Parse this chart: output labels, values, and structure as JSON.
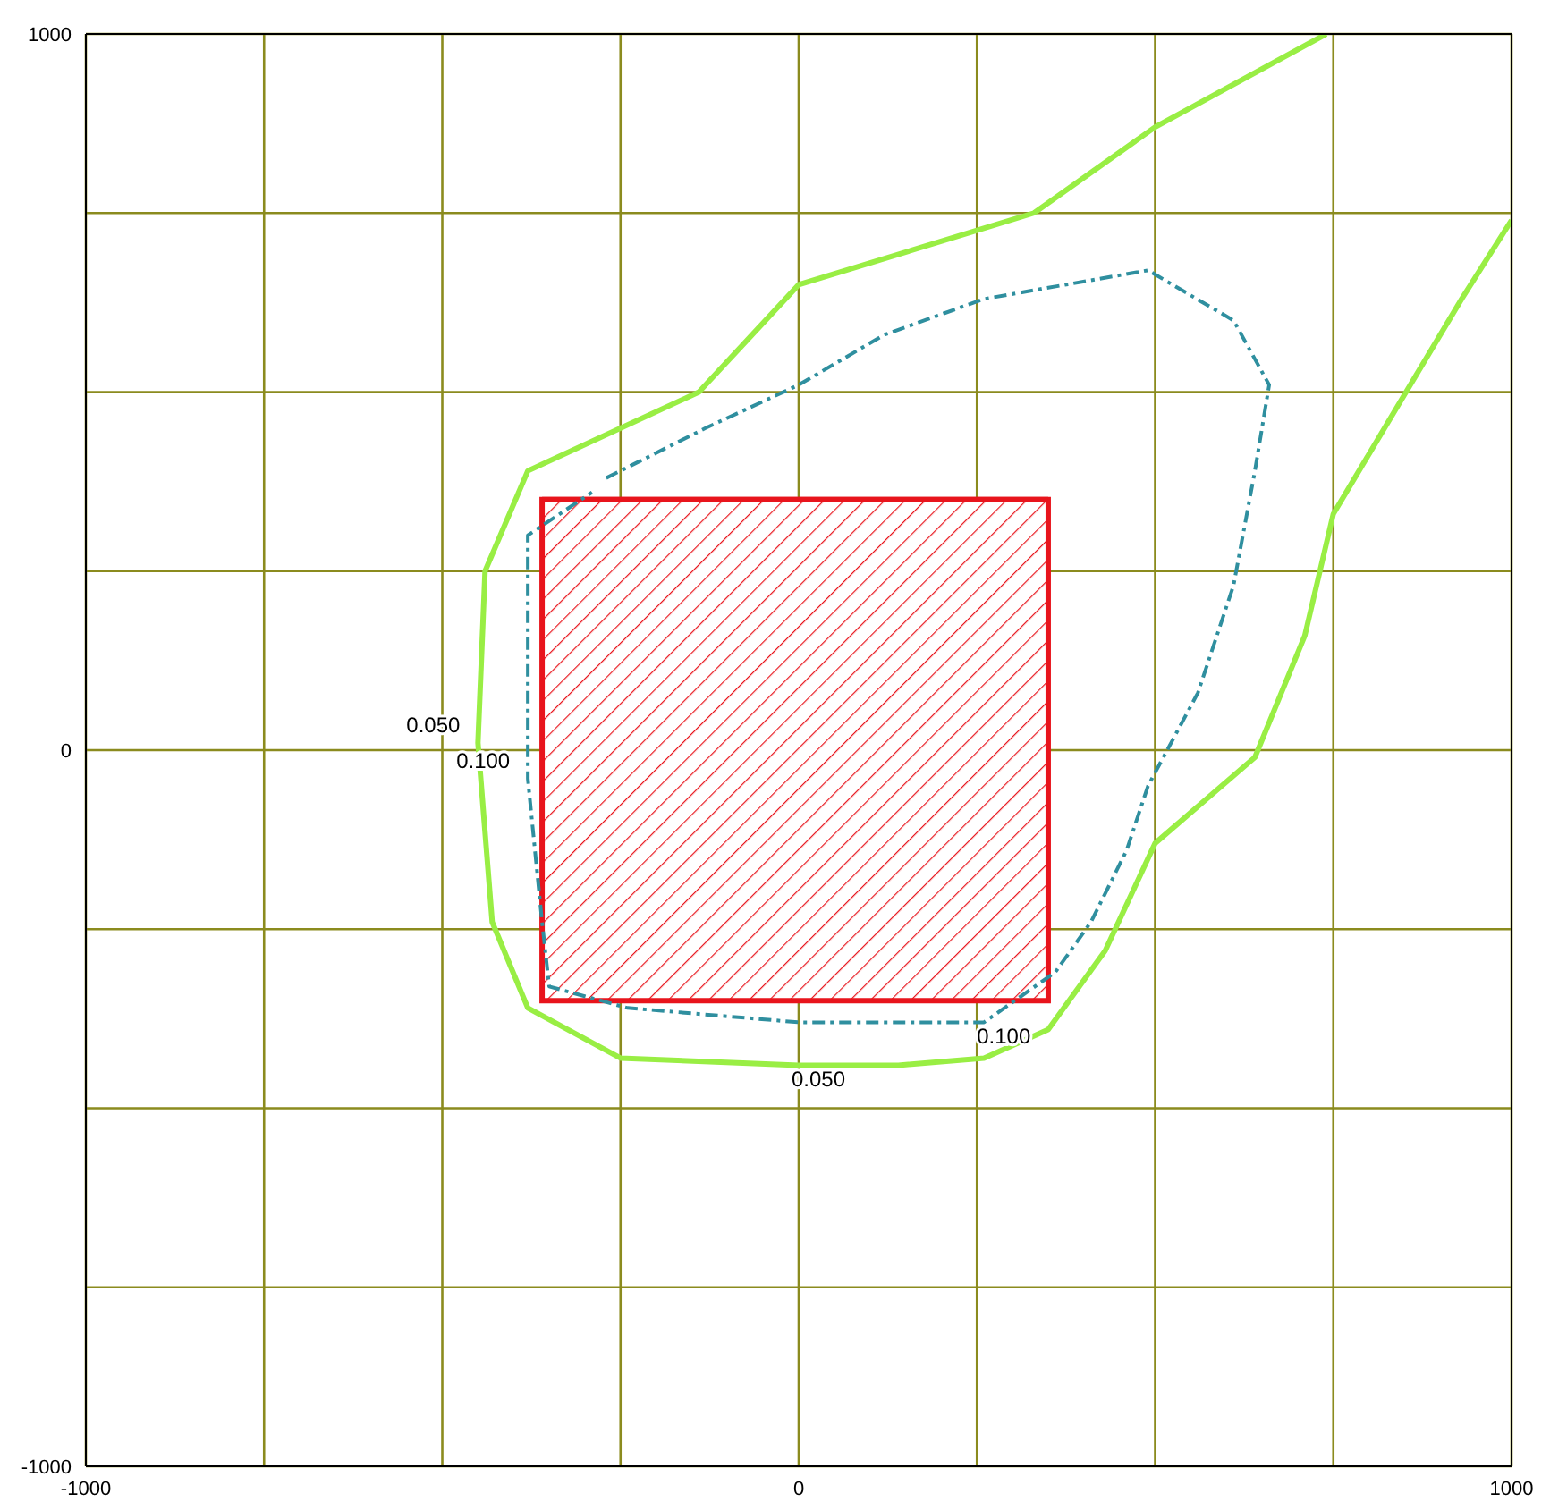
{
  "chart_data": {
    "type": "line",
    "xlim": [
      -1000,
      1000
    ],
    "ylim": [
      -1000,
      1000
    ],
    "xticks": [
      -1000,
      {
        "value": -750,
        "label": null
      },
      {
        "value": -500,
        "label": null
      },
      {
        "value": -250,
        "label": null
      },
      0,
      {
        "value": 250,
        "label": null
      },
      {
        "value": 500,
        "label": null
      },
      {
        "value": 750,
        "label": null
      },
      1000
    ],
    "yticks": [
      -1000,
      {
        "value": -750,
        "label": null
      },
      {
        "value": -500,
        "label": null
      },
      {
        "value": -250,
        "label": null
      },
      0,
      {
        "value": 250,
        "label": null
      },
      {
        "value": 500,
        "label": null
      },
      {
        "value": 750,
        "label": null
      },
      1000
    ],
    "grid": true,
    "marker": "none",
    "series": [
      {
        "type": "line",
        "color": "#e8141c",
        "line_style": "solid",
        "x": [
          -360,
          350
        ],
        "lower": [
          -350,
          -350
        ],
        "upper": [
          350,
          350
        ],
        "values": [
          350,
          350
        ]
      },
      {
        "name": "0.050",
        "color": "#99ee44",
        "line_style": "solid",
        "x": [
          740,
          500,
          330,
          0,
          -140,
          -380,
          -440,
          -450,
          -430,
          -380,
          -250,
          0,
          140,
          260,
          350,
          430,
          500,
          640,
          710,
          750,
          840,
          930,
          1000
        ],
        "values": [
          1000,
          870,
          750,
          650,
          500,
          390,
          250,
          10,
          -240,
          -360,
          -430,
          -440,
          -440,
          -430,
          -390,
          -280,
          -130,
          -10,
          160,
          330,
          480,
          630,
          740
        ]
      },
      {
        "name": "0.100",
        "color": "#2f8f9f",
        "line_style": "dashed",
        "x": [
          -270,
          -130,
          0,
          120,
          260,
          490,
          610,
          660,
          640,
          610,
          560,
          490,
          460,
          410,
          360,
          260,
          0,
          -240,
          -350,
          -360,
          -380,
          -380,
          -380,
          -290
        ],
        "values": [
          380,
          450,
          510,
          580,
          630,
          670,
          600,
          510,
          390,
          230,
          80,
          -50,
          -140,
          -240,
          -310,
          -380,
          -380,
          -360,
          -330,
          -240,
          -40,
          230,
          300,
          360
        ]
      }
    ]
  }
}
